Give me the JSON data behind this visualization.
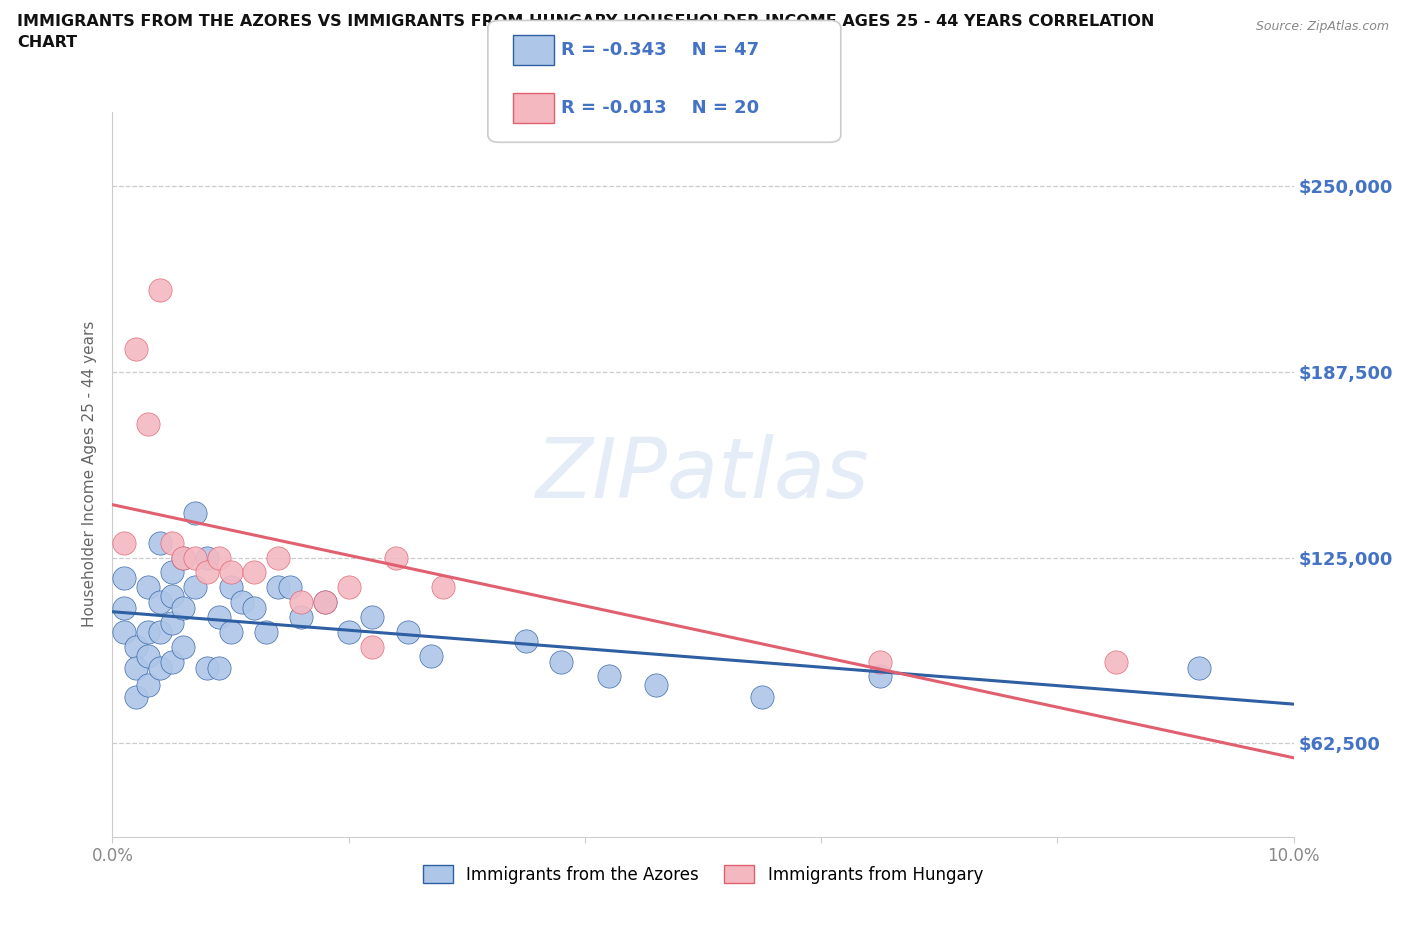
{
  "title_line1": "IMMIGRANTS FROM THE AZORES VS IMMIGRANTS FROM HUNGARY HOUSEHOLDER INCOME AGES 25 - 44 YEARS CORRELATION",
  "title_line2": "CHART",
  "source": "Source: ZipAtlas.com",
  "ylabel": "Householder Income Ages 25 - 44 years",
  "ytick_labels": [
    "$62,500",
    "$125,000",
    "$187,500",
    "$250,000"
  ],
  "ytick_values": [
    62500,
    125000,
    187500,
    250000
  ],
  "xlim": [
    0.0,
    0.1
  ],
  "ylim": [
    31000,
    275000
  ],
  "legend_azores": "Immigrants from the Azores",
  "legend_hungary": "Immigrants from Hungary",
  "R_azores": -0.343,
  "N_azores": 47,
  "R_hungary": -0.013,
  "N_hungary": 20,
  "color_azores": "#aec6e8",
  "color_hungary": "#f4b8c1",
  "line_color_azores": "#2e5fa3",
  "line_color_hungary": "#e06070",
  "watermark": "ZIPatlas",
  "azores_x": [
    0.001,
    0.001,
    0.001,
    0.002,
    0.002,
    0.002,
    0.003,
    0.003,
    0.003,
    0.003,
    0.004,
    0.004,
    0.004,
    0.004,
    0.005,
    0.005,
    0.005,
    0.005,
    0.006,
    0.006,
    0.006,
    0.007,
    0.007,
    0.008,
    0.008,
    0.009,
    0.009,
    0.01,
    0.01,
    0.011,
    0.012,
    0.013,
    0.014,
    0.015,
    0.016,
    0.018,
    0.02,
    0.022,
    0.025,
    0.027,
    0.035,
    0.038,
    0.042,
    0.046,
    0.055,
    0.065,
    0.092
  ],
  "azores_y": [
    118000,
    108000,
    100000,
    95000,
    88000,
    78000,
    115000,
    100000,
    92000,
    82000,
    130000,
    110000,
    100000,
    88000,
    120000,
    112000,
    103000,
    90000,
    125000,
    108000,
    95000,
    140000,
    115000,
    125000,
    88000,
    105000,
    88000,
    115000,
    100000,
    110000,
    108000,
    100000,
    115000,
    115000,
    105000,
    110000,
    100000,
    105000,
    100000,
    92000,
    97000,
    90000,
    85000,
    82000,
    78000,
    85000,
    88000
  ],
  "hungary_x": [
    0.001,
    0.002,
    0.003,
    0.004,
    0.005,
    0.006,
    0.007,
    0.008,
    0.009,
    0.01,
    0.012,
    0.014,
    0.016,
    0.018,
    0.02,
    0.022,
    0.024,
    0.028,
    0.065,
    0.085
  ],
  "hungary_y": [
    130000,
    195000,
    170000,
    215000,
    130000,
    125000,
    125000,
    120000,
    125000,
    120000,
    120000,
    125000,
    110000,
    110000,
    115000,
    95000,
    125000,
    115000,
    90000,
    90000
  ]
}
